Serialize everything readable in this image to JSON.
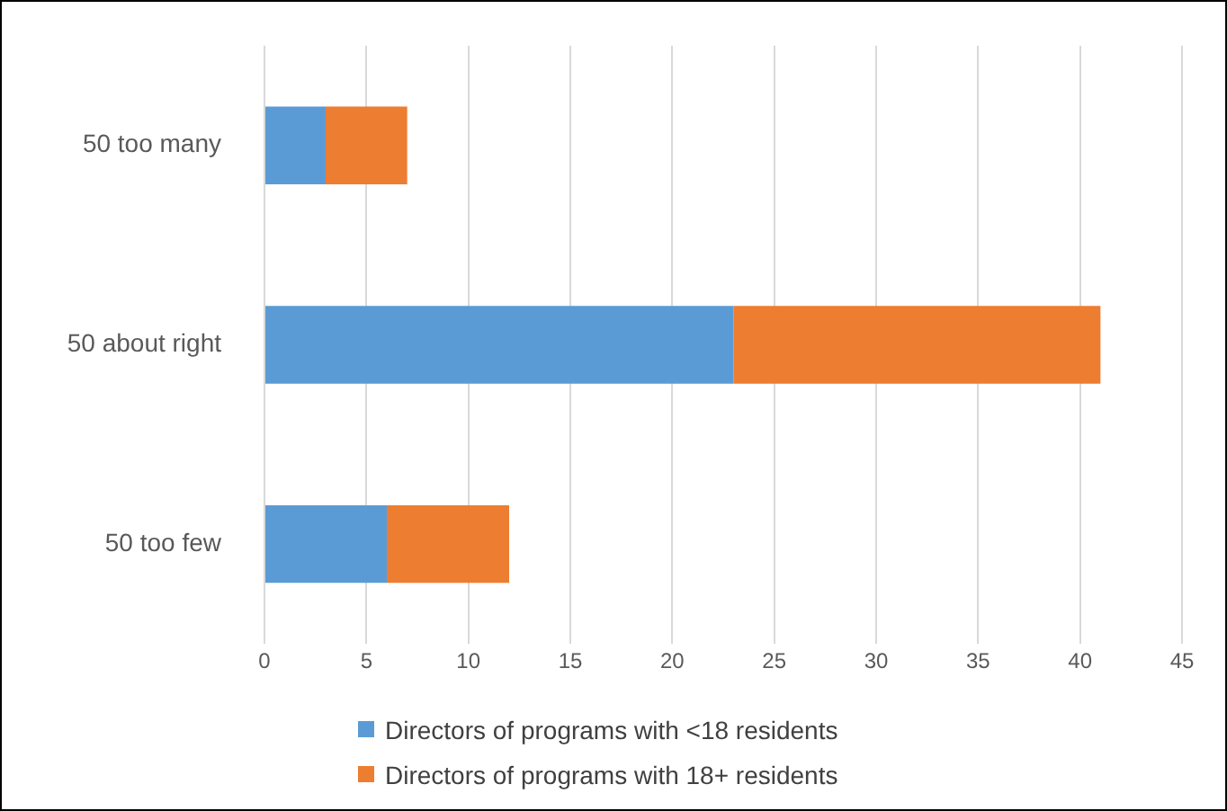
{
  "chart_data": {
    "type": "bar",
    "orientation": "horizontal",
    "stacked": true,
    "categories": [
      "50 too many",
      "50 about right",
      "50 too few"
    ],
    "series": [
      {
        "name": "Directors of programs with <18 residents",
        "color": "#5b9bd5",
        "values": [
          3,
          23,
          6
        ]
      },
      {
        "name": "Directors of programs with 18+ residents",
        "color": "#ed7d31",
        "values": [
          4,
          18,
          6
        ]
      }
    ],
    "xlim": [
      0,
      45
    ],
    "xticks": [
      0,
      5,
      10,
      15,
      20,
      25,
      30,
      35,
      40,
      45
    ],
    "grid": "x",
    "legend": "bottom"
  }
}
